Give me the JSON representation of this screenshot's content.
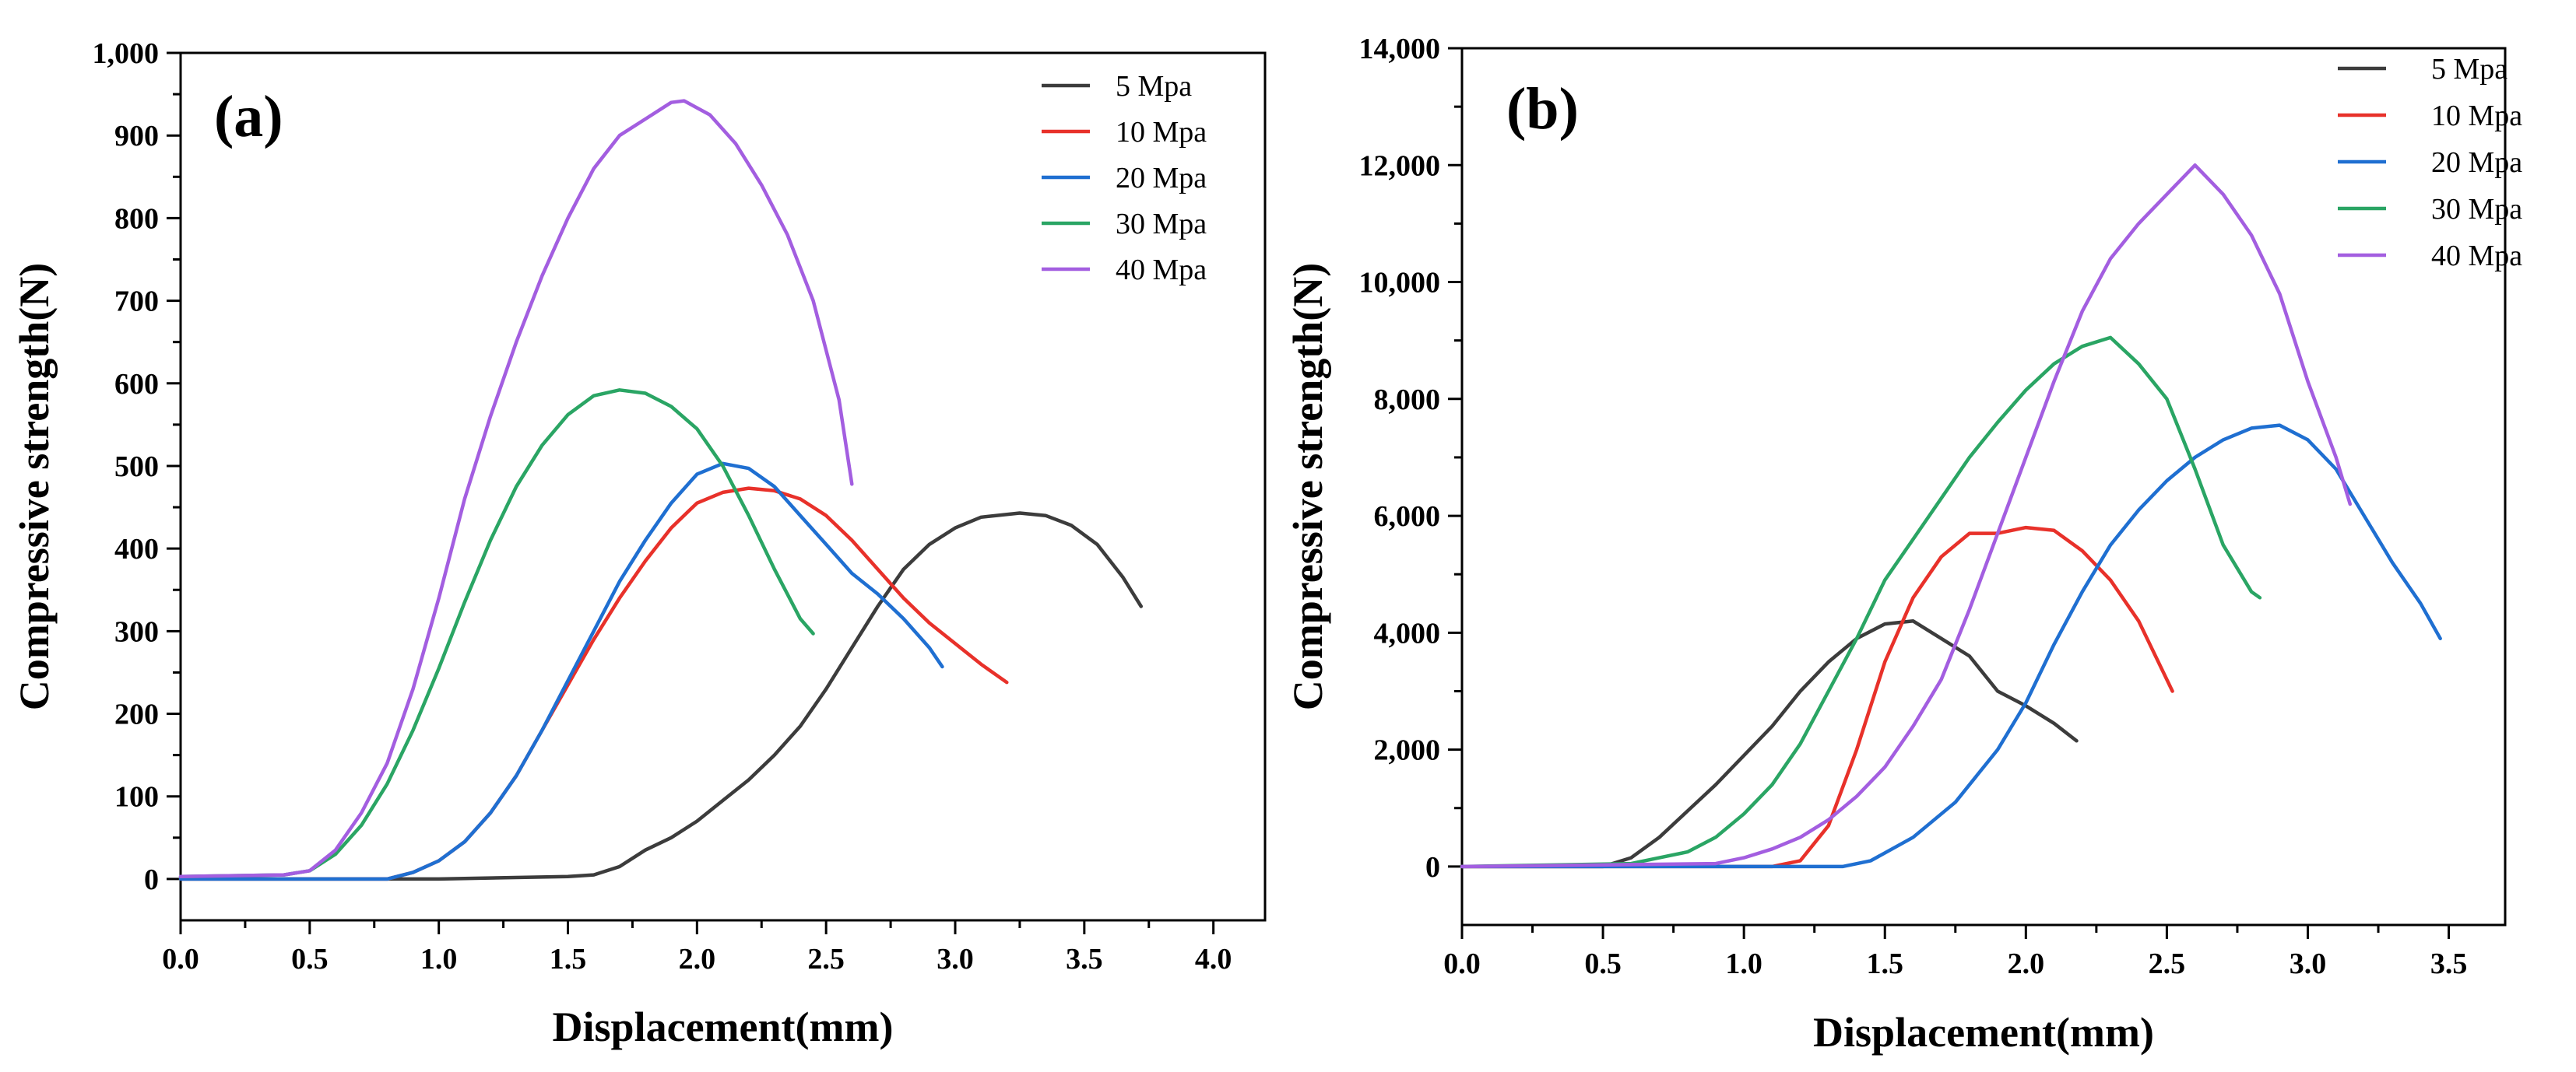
{
  "chart_data": [
    {
      "type": "line",
      "panel_label": "(a)",
      "xlabel": "Displacement(mm)",
      "ylabel": "Compressive strength(N)",
      "xlim": [
        0.0,
        4.2
      ],
      "ylim": [
        -50,
        1000
      ],
      "xticks": [
        0.0,
        0.5,
        1.0,
        1.5,
        2.0,
        2.5,
        3.0,
        3.5,
        4.0
      ],
      "xtick_labels": [
        "0.0",
        "0.5",
        "1.0",
        "1.5",
        "2.0",
        "2.5",
        "3.0",
        "3.5",
        "4.0"
      ],
      "yticks": [
        0,
        100,
        200,
        300,
        400,
        500,
        600,
        700,
        800,
        900,
        1000
      ],
      "ytick_labels": [
        "0",
        "100",
        "200",
        "300",
        "400",
        "500",
        "600",
        "700",
        "800",
        "900",
        "1,000"
      ],
      "legend_position": "top-right",
      "series": [
        {
          "name": "5 Mpa",
          "color": "#3c3c3c",
          "points": [
            [
              0,
              0
            ],
            [
              0.5,
              0
            ],
            [
              1.0,
              0
            ],
            [
              1.5,
              3
            ],
            [
              1.6,
              5
            ],
            [
              1.7,
              15
            ],
            [
              1.8,
              35
            ],
            [
              1.9,
              50
            ],
            [
              2.0,
              70
            ],
            [
              2.1,
              95
            ],
            [
              2.2,
              120
            ],
            [
              2.3,
              150
            ],
            [
              2.4,
              185
            ],
            [
              2.5,
              230
            ],
            [
              2.6,
              280
            ],
            [
              2.7,
              330
            ],
            [
              2.8,
              375
            ],
            [
              2.9,
              405
            ],
            [
              3.0,
              425
            ],
            [
              3.1,
              438
            ],
            [
              3.25,
              443
            ],
            [
              3.35,
              440
            ],
            [
              3.45,
              428
            ],
            [
              3.55,
              405
            ],
            [
              3.65,
              365
            ],
            [
              3.72,
              330
            ]
          ]
        },
        {
          "name": "10 Mpa",
          "color": "#e8312a",
          "points": [
            [
              0,
              0
            ],
            [
              0.8,
              0
            ],
            [
              0.9,
              8
            ],
            [
              1.0,
              22
            ],
            [
              1.1,
              45
            ],
            [
              1.2,
              80
            ],
            [
              1.3,
              125
            ],
            [
              1.4,
              180
            ],
            [
              1.5,
              235
            ],
            [
              1.6,
              290
            ],
            [
              1.7,
              340
            ],
            [
              1.8,
              385
            ],
            [
              1.9,
              425
            ],
            [
              2.0,
              455
            ],
            [
              2.1,
              468
            ],
            [
              2.2,
              473
            ],
            [
              2.3,
              470
            ],
            [
              2.4,
              460
            ],
            [
              2.5,
              440
            ],
            [
              2.6,
              410
            ],
            [
              2.7,
              375
            ],
            [
              2.8,
              340
            ],
            [
              2.9,
              310
            ],
            [
              3.0,
              285
            ],
            [
              3.1,
              260
            ],
            [
              3.2,
              238
            ]
          ]
        },
        {
          "name": "20 Mpa",
          "color": "#1f6fd1",
          "points": [
            [
              0,
              0
            ],
            [
              0.8,
              0
            ],
            [
              0.9,
              8
            ],
            [
              1.0,
              22
            ],
            [
              1.1,
              45
            ],
            [
              1.2,
              80
            ],
            [
              1.3,
              125
            ],
            [
              1.4,
              180
            ],
            [
              1.5,
              240
            ],
            [
              1.6,
              300
            ],
            [
              1.7,
              360
            ],
            [
              1.8,
              410
            ],
            [
              1.9,
              455
            ],
            [
              2.0,
              490
            ],
            [
              2.1,
              503
            ],
            [
              2.2,
              497
            ],
            [
              2.3,
              475
            ],
            [
              2.4,
              440
            ],
            [
              2.5,
              405
            ],
            [
              2.6,
              370
            ],
            [
              2.7,
              345
            ],
            [
              2.8,
              315
            ],
            [
              2.9,
              280
            ],
            [
              2.95,
              257
            ]
          ]
        },
        {
          "name": "30 Mpa",
          "color": "#2aa564",
          "points": [
            [
              0,
              3
            ],
            [
              0.4,
              5
            ],
            [
              0.5,
              10
            ],
            [
              0.6,
              30
            ],
            [
              0.7,
              65
            ],
            [
              0.8,
              115
            ],
            [
              0.9,
              180
            ],
            [
              1.0,
              255
            ],
            [
              1.1,
              335
            ],
            [
              1.2,
              410
            ],
            [
              1.3,
              475
            ],
            [
              1.4,
              525
            ],
            [
              1.5,
              562
            ],
            [
              1.6,
              585
            ],
            [
              1.7,
              592
            ],
            [
              1.8,
              588
            ],
            [
              1.9,
              572
            ],
            [
              2.0,
              545
            ],
            [
              2.1,
              500
            ],
            [
              2.2,
              440
            ],
            [
              2.3,
              375
            ],
            [
              2.4,
              315
            ],
            [
              2.45,
              297
            ]
          ]
        },
        {
          "name": "40 Mpa",
          "color": "#a35ee0",
          "points": [
            [
              0,
              3
            ],
            [
              0.4,
              5
            ],
            [
              0.5,
              10
            ],
            [
              0.6,
              35
            ],
            [
              0.7,
              80
            ],
            [
              0.8,
              140
            ],
            [
              0.9,
              230
            ],
            [
              1.0,
              340
            ],
            [
              1.1,
              460
            ],
            [
              1.2,
              560
            ],
            [
              1.3,
              650
            ],
            [
              1.4,
              730
            ],
            [
              1.5,
              800
            ],
            [
              1.6,
              860
            ],
            [
              1.7,
              900
            ],
            [
              1.8,
              920
            ],
            [
              1.9,
              940
            ],
            [
              1.95,
              942
            ],
            [
              2.05,
              925
            ],
            [
              2.15,
              890
            ],
            [
              2.25,
              840
            ],
            [
              2.35,
              780
            ],
            [
              2.45,
              700
            ],
            [
              2.55,
              580
            ],
            [
              2.6,
              478
            ]
          ]
        }
      ]
    },
    {
      "type": "line",
      "panel_label": "(b)",
      "xlabel": "Displacement(mm)",
      "ylabel": "Compressive strength(N)",
      "xlim": [
        0.0,
        3.7
      ],
      "ylim": [
        -1000,
        14000
      ],
      "xticks": [
        0.0,
        0.5,
        1.0,
        1.5,
        2.0,
        2.5,
        3.0,
        3.5
      ],
      "xtick_labels": [
        "0.0",
        "0.5",
        "1.0",
        "1.5",
        "2.0",
        "2.5",
        "3.0",
        "3.5"
      ],
      "yticks": [
        0,
        2000,
        4000,
        6000,
        8000,
        10000,
        12000,
        14000
      ],
      "ytick_labels": [
        "0",
        "2,000",
        "4,000",
        "6,000",
        "8,000",
        "10,000",
        "12,000",
        "14,000"
      ],
      "legend_position": "top-right",
      "series": [
        {
          "name": "5 Mpa",
          "color": "#3c3c3c",
          "points": [
            [
              0,
              0
            ],
            [
              0.5,
              0
            ],
            [
              0.6,
              150
            ],
            [
              0.7,
              500
            ],
            [
              0.8,
              950
            ],
            [
              0.9,
              1400
            ],
            [
              1.0,
              1900
            ],
            [
              1.1,
              2400
            ],
            [
              1.2,
              3000
            ],
            [
              1.3,
              3500
            ],
            [
              1.4,
              3900
            ],
            [
              1.5,
              4150
            ],
            [
              1.6,
              4200
            ],
            [
              1.7,
              3900
            ],
            [
              1.8,
              3600
            ],
            [
              1.9,
              3000
            ],
            [
              2.0,
              2750
            ],
            [
              2.1,
              2450
            ],
            [
              2.18,
              2150
            ]
          ]
        },
        {
          "name": "10 Mpa",
          "color": "#e8312a",
          "points": [
            [
              0,
              0
            ],
            [
              1.1,
              0
            ],
            [
              1.2,
              100
            ],
            [
              1.3,
              700
            ],
            [
              1.4,
              2000
            ],
            [
              1.5,
              3500
            ],
            [
              1.6,
              4600
            ],
            [
              1.7,
              5300
            ],
            [
              1.8,
              5700
            ],
            [
              1.9,
              5700
            ],
            [
              2.0,
              5800
            ],
            [
              2.1,
              5750
            ],
            [
              2.2,
              5400
            ],
            [
              2.3,
              4900
            ],
            [
              2.4,
              4200
            ],
            [
              2.52,
              3000
            ]
          ]
        },
        {
          "name": "20 Mpa",
          "color": "#1f6fd1",
          "points": [
            [
              0,
              0
            ],
            [
              1.35,
              0
            ],
            [
              1.45,
              100
            ],
            [
              1.6,
              500
            ],
            [
              1.75,
              1100
            ],
            [
              1.9,
              2000
            ],
            [
              2.0,
              2800
            ],
            [
              2.1,
              3800
            ],
            [
              2.2,
              4700
            ],
            [
              2.3,
              5500
            ],
            [
              2.4,
              6100
            ],
            [
              2.5,
              6600
            ],
            [
              2.6,
              7000
            ],
            [
              2.7,
              7300
            ],
            [
              2.8,
              7500
            ],
            [
              2.9,
              7550
            ],
            [
              3.0,
              7300
            ],
            [
              3.1,
              6800
            ],
            [
              3.2,
              6000
            ],
            [
              3.3,
              5200
            ],
            [
              3.4,
              4500
            ],
            [
              3.47,
              3900
            ]
          ]
        },
        {
          "name": "30 Mpa",
          "color": "#2aa564",
          "points": [
            [
              0,
              0
            ],
            [
              0.6,
              50
            ],
            [
              0.7,
              150
            ],
            [
              0.8,
              250
            ],
            [
              0.9,
              500
            ],
            [
              1.0,
              900
            ],
            [
              1.1,
              1400
            ],
            [
              1.2,
              2100
            ],
            [
              1.3,
              3000
            ],
            [
              1.4,
              3900
            ],
            [
              1.5,
              4900
            ],
            [
              1.6,
              5600
            ],
            [
              1.7,
              6300
            ],
            [
              1.8,
              7000
            ],
            [
              1.9,
              7600
            ],
            [
              2.0,
              8150
            ],
            [
              2.1,
              8600
            ],
            [
              2.2,
              8900
            ],
            [
              2.3,
              9050
            ],
            [
              2.4,
              8600
            ],
            [
              2.5,
              8000
            ],
            [
              2.6,
              6800
            ],
            [
              2.7,
              5500
            ],
            [
              2.8,
              4700
            ],
            [
              2.83,
              4600
            ]
          ]
        },
        {
          "name": "40 Mpa",
          "color": "#a35ee0",
          "points": [
            [
              0,
              0
            ],
            [
              0.9,
              50
            ],
            [
              1.0,
              150
            ],
            [
              1.1,
              300
            ],
            [
              1.2,
              500
            ],
            [
              1.3,
              800
            ],
            [
              1.4,
              1200
            ],
            [
              1.5,
              1700
            ],
            [
              1.6,
              2400
            ],
            [
              1.7,
              3200
            ],
            [
              1.8,
              4400
            ],
            [
              1.9,
              5700
            ],
            [
              2.0,
              7000
            ],
            [
              2.1,
              8300
            ],
            [
              2.2,
              9500
            ],
            [
              2.3,
              10400
            ],
            [
              2.4,
              11000
            ],
            [
              2.5,
              11500
            ],
            [
              2.6,
              12000
            ],
            [
              2.7,
              11500
            ],
            [
              2.8,
              10800
            ],
            [
              2.9,
              9800
            ],
            [
              3.0,
              8300
            ],
            [
              3.1,
              7000
            ],
            [
              3.15,
              6200
            ]
          ]
        }
      ]
    }
  ]
}
